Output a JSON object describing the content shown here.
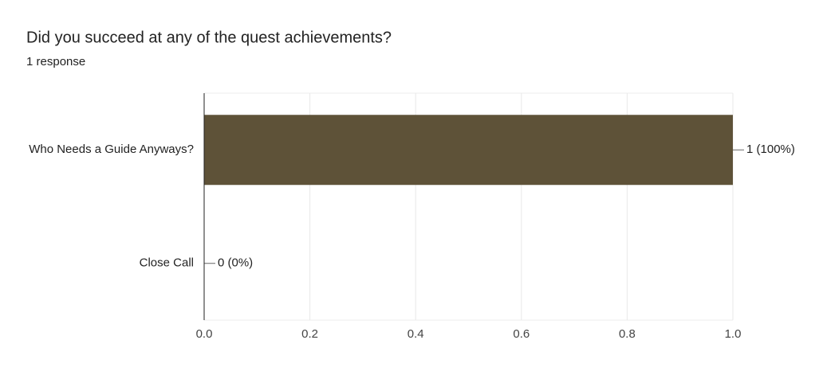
{
  "chart_data": {
    "type": "bar",
    "orientation": "horizontal",
    "title": "Did you succeed at any of the quest achievements?",
    "subtitle": "1 response",
    "categories": [
      "Who Needs a Guide Anyways?",
      "Close Call"
    ],
    "values": [
      1,
      0
    ],
    "value_labels": [
      "1 (100%)",
      "0 (0%)"
    ],
    "color": "#5e5238",
    "xlim": [
      0,
      1
    ],
    "xticks": [
      {
        "value": 0,
        "label": "0.0"
      },
      0.2,
      0.4,
      0.6,
      0.8,
      {
        "value": 1,
        "label": "1.0"
      }
    ],
    "grid": true
  }
}
